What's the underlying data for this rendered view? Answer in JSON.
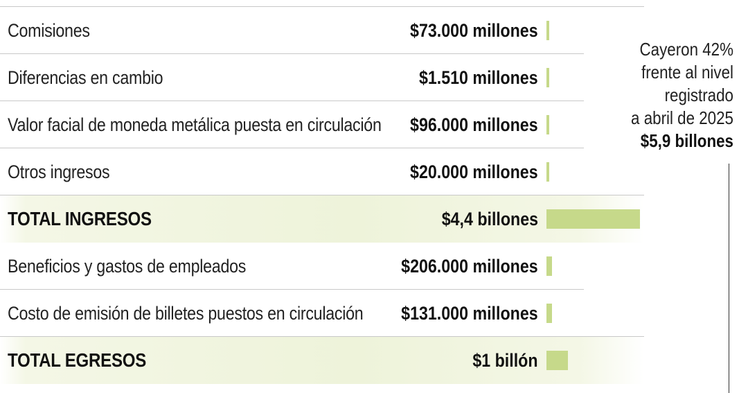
{
  "chart_data": {
    "type": "bar",
    "orientation": "horizontal",
    "rows": [
      {
        "label": "Comisiones",
        "value_text": "$73.000 millones",
        "value": 0.073,
        "total": false
      },
      {
        "label": "Diferencias en cambio",
        "value_text": "$1.510 millones",
        "value": 0.00151,
        "total": false
      },
      {
        "label": "Valor facial de moneda metálica puesta en circulación",
        "value_text": "$96.000 millones",
        "value": 0.096,
        "total": false
      },
      {
        "label": "Otros ingresos",
        "value_text": "$20.000 millones",
        "value": 0.02,
        "total": false
      },
      {
        "label": "TOTAL INGRESOS",
        "value_text": "$4,4 billones",
        "value": 4.4,
        "total": true
      },
      {
        "label": "Beneficios y gastos de empleados",
        "value_text": "$206.000 millones",
        "value": 0.206,
        "total": false
      },
      {
        "label": "Costo de emisión de billetes puestos en circulación",
        "value_text": "$131.000 millones",
        "value": 0.131,
        "total": false
      },
      {
        "label": "TOTAL EGRESOS",
        "value_text": "$1 billón",
        "value": 1.0,
        "total": true
      }
    ],
    "bar_color": "#c6d98a",
    "annotation": {
      "lines": [
        "Cayeron 42%",
        "frente al nivel",
        "registrado",
        "a abril de 2025"
      ],
      "emphasis": "$5,9 billones"
    }
  }
}
